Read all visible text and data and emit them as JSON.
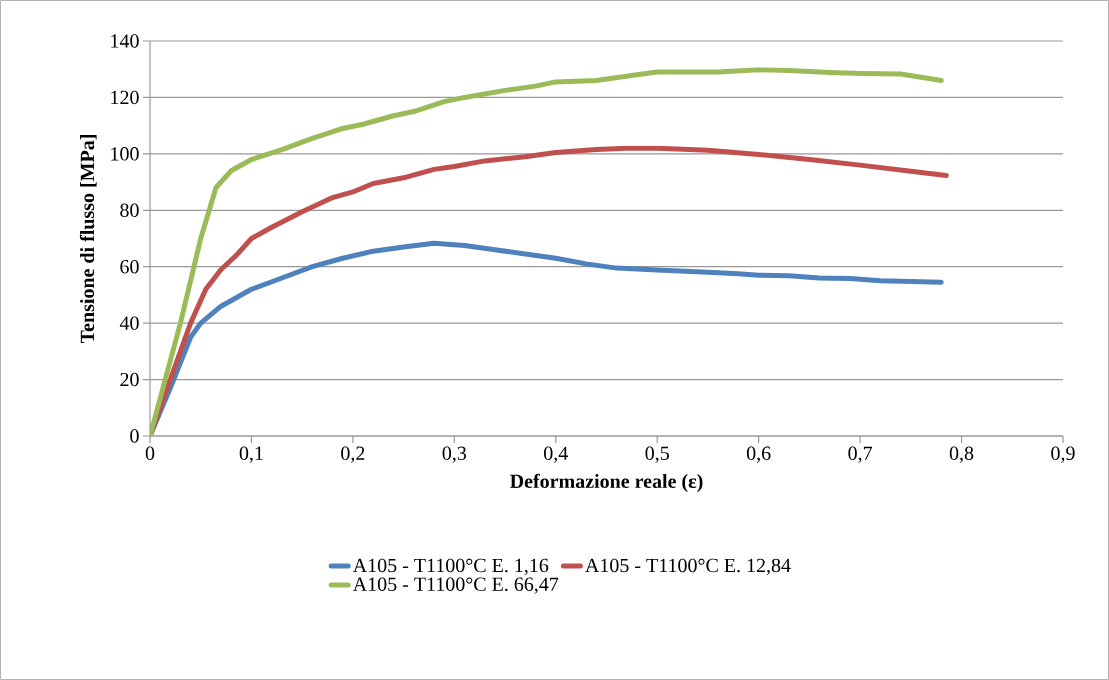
{
  "chart_data": {
    "type": "line",
    "xlabel": "Deformazione reale (ε)",
    "ylabel": "Tensione di flusso [MPa]",
    "xlim": [
      0,
      0.9
    ],
    "ylim": [
      0,
      140
    ],
    "xticks": [
      0,
      {
        "value": 0.1,
        "label": "0,1"
      },
      {
        "value": 0.2,
        "label": "0,2"
      },
      {
        "value": 0.3,
        "label": "0,3"
      },
      {
        "value": 0.4,
        "label": "0,4"
      },
      {
        "value": 0.5,
        "label": "0,5"
      },
      {
        "value": 0.6,
        "label": "0,6"
      },
      {
        "value": 0.7,
        "label": "0,7"
      },
      {
        "value": 0.8,
        "label": "0,8"
      },
      {
        "value": 0.9,
        "label": "0,9"
      }
    ],
    "yticks": [
      0,
      20,
      40,
      60,
      80,
      100,
      120,
      140
    ],
    "grid": "y",
    "legend": "bottom",
    "marker": "none",
    "line_style": "solid",
    "series": [
      {
        "name": "A105 - T1100°C E. 1,16",
        "color": "#4f81bd",
        "x": [
          0,
          0.02,
          0.04,
          0.05,
          0.07,
          0.1,
          0.13,
          0.16,
          0.19,
          0.22,
          0.25,
          0.28,
          0.31,
          0.34,
          0.37,
          0.4,
          0.43,
          0.46,
          0.5,
          0.55,
          0.58,
          0.6,
          0.63,
          0.66,
          0.69,
          0.72,
          0.75,
          0.78
        ],
        "values": [
          0,
          17,
          35,
          40,
          46,
          52,
          56,
          60,
          63,
          65.5,
          67,
          68.3,
          67.5,
          66,
          64.5,
          63,
          61,
          59.5,
          58.8,
          58,
          57.5,
          57,
          56.8,
          56,
          55.8,
          55,
          54.8,
          54.5
        ]
      },
      {
        "name": "A105 - T1100°C E. 12,84",
        "color": "#c0504d",
        "x": [
          0,
          0.02,
          0.04,
          0.055,
          0.07,
          0.085,
          0.1,
          0.12,
          0.15,
          0.18,
          0.2,
          0.22,
          0.25,
          0.28,
          0.3,
          0.33,
          0.37,
          0.4,
          0.44,
          0.47,
          0.5,
          0.55,
          0.6,
          0.65,
          0.7,
          0.75,
          0.785
        ],
        "values": [
          0,
          20,
          40,
          52,
          59,
          64,
          70,
          74,
          79.5,
          84.5,
          86.5,
          89.5,
          91.5,
          94.5,
          95.5,
          97.5,
          99,
          100.5,
          101.5,
          102,
          102,
          101.3,
          99.8,
          98,
          96,
          93.8,
          92.3
        ]
      },
      {
        "name": "A105 - T1100°C E. 66,47",
        "color": "#9bbb59",
        "x": [
          0,
          0.03,
          0.05,
          0.065,
          0.08,
          0.1,
          0.13,
          0.16,
          0.19,
          0.21,
          0.24,
          0.26,
          0.29,
          0.31,
          0.35,
          0.38,
          0.4,
          0.44,
          0.48,
          0.5,
          0.56,
          0.6,
          0.63,
          0.67,
          0.7,
          0.74,
          0.78
        ],
        "values": [
          0,
          40,
          70,
          88,
          94,
          98,
          101.5,
          105.5,
          109,
          110.5,
          113.5,
          115,
          118.5,
          120,
          122.5,
          124,
          125.5,
          126,
          128,
          129,
          129,
          129.8,
          129.5,
          128.8,
          128.5,
          128.3,
          126
        ]
      }
    ]
  }
}
